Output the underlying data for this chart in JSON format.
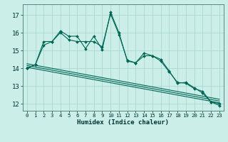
{
  "xlabel": "Humidex (Indice chaleur)",
  "bg_color": "#cceee8",
  "grid_color": "#aad8d0",
  "line_color": "#006655",
  "xlim": [
    -0.5,
    23.5
  ],
  "ylim": [
    11.6,
    17.6
  ],
  "yticks": [
    12,
    13,
    14,
    15,
    16,
    17
  ],
  "xticks": [
    0,
    1,
    2,
    3,
    4,
    5,
    6,
    7,
    8,
    9,
    10,
    11,
    12,
    13,
    14,
    15,
    16,
    17,
    18,
    19,
    20,
    21,
    22,
    23
  ],
  "line1_x": [
    0,
    1,
    2,
    3,
    4,
    5,
    6,
    7,
    8,
    9,
    10,
    11,
    12,
    13,
    14,
    15,
    16,
    17,
    18,
    19,
    20,
    21,
    22,
    23
  ],
  "line1_y": [
    14.0,
    14.2,
    15.5,
    15.5,
    16.1,
    15.8,
    15.8,
    15.1,
    15.8,
    15.05,
    17.15,
    16.0,
    14.4,
    14.3,
    14.85,
    14.7,
    14.5,
    13.85,
    13.15,
    13.2,
    12.9,
    12.6,
    12.1,
    12.0
  ],
  "line2_x": [
    0,
    1,
    2,
    3,
    4,
    5,
    6,
    7,
    8,
    9,
    10,
    11,
    12,
    13,
    14,
    15,
    16,
    17,
    18,
    19,
    20,
    21,
    22,
    23
  ],
  "line2_y": [
    14.0,
    14.2,
    15.3,
    15.5,
    16.0,
    15.6,
    15.5,
    15.5,
    15.5,
    15.2,
    17.05,
    15.9,
    14.45,
    14.3,
    14.7,
    14.7,
    14.4,
    13.8,
    13.2,
    13.15,
    12.85,
    12.7,
    12.1,
    11.9
  ],
  "trend1_x": [
    0,
    23
  ],
  "trend1_y": [
    14.05,
    12.05
  ],
  "trend2_x": [
    0,
    23
  ],
  "trend2_y": [
    14.15,
    12.15
  ],
  "trend3_x": [
    0,
    23
  ],
  "trend3_y": [
    14.25,
    12.25
  ]
}
